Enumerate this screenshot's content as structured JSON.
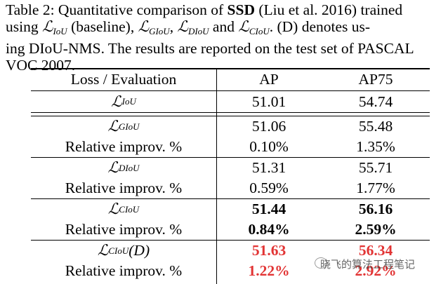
{
  "caption": {
    "label": "Table 2:",
    "text1": "Quantitative comparison of",
    "ssd": "SSD",
    "text2": "(Liu et al. 2016) trained",
    "line2_a": "using",
    "line2_iou": "IoU",
    "line2_b": "(baseline),",
    "line2_giou": "GIoU",
    "line2_diou": "DIoU",
    "line2_and": "and",
    "line2_ciou": "CIoU",
    "line2_c": ". (D) denotes us-",
    "line3": "ing DIoU-NMS. The results are reported on the test set of PASCAL",
    "line4": "VOC 2007."
  },
  "table": {
    "headers": [
      "Loss / Evaluation",
      "AP",
      "AP75"
    ],
    "script_L": "ℒ",
    "rows": [
      {
        "loss": "IoU",
        "ap": "51.01",
        "ap75": "54.74"
      },
      {
        "loss": "GIoU",
        "ap": "51.06",
        "ap75": "55.48"
      },
      {
        "label": "Relative improv. %",
        "ap": "0.10%",
        "ap75": "1.35%"
      },
      {
        "loss": "DIoU",
        "ap": "51.31",
        "ap75": "55.71"
      },
      {
        "label": "Relative improv. %",
        "ap": "0.59%",
        "ap75": "1.77%"
      },
      {
        "loss": "CIoU",
        "ap": "51.44",
        "ap75": "56.16"
      },
      {
        "label": "Relative improv. %",
        "ap": "0.84%",
        "ap75": "2.59%"
      },
      {
        "loss": "CIoU",
        "suffix": "(D)",
        "ap": "51.63",
        "ap75": "56.34"
      },
      {
        "label": "Relative improv. %",
        "ap": "1.22%",
        "ap75": "2.92%"
      }
    ]
  },
  "watermark": "晓飞的算法工程笔记",
  "colors": {
    "highlight": "#e23434"
  }
}
